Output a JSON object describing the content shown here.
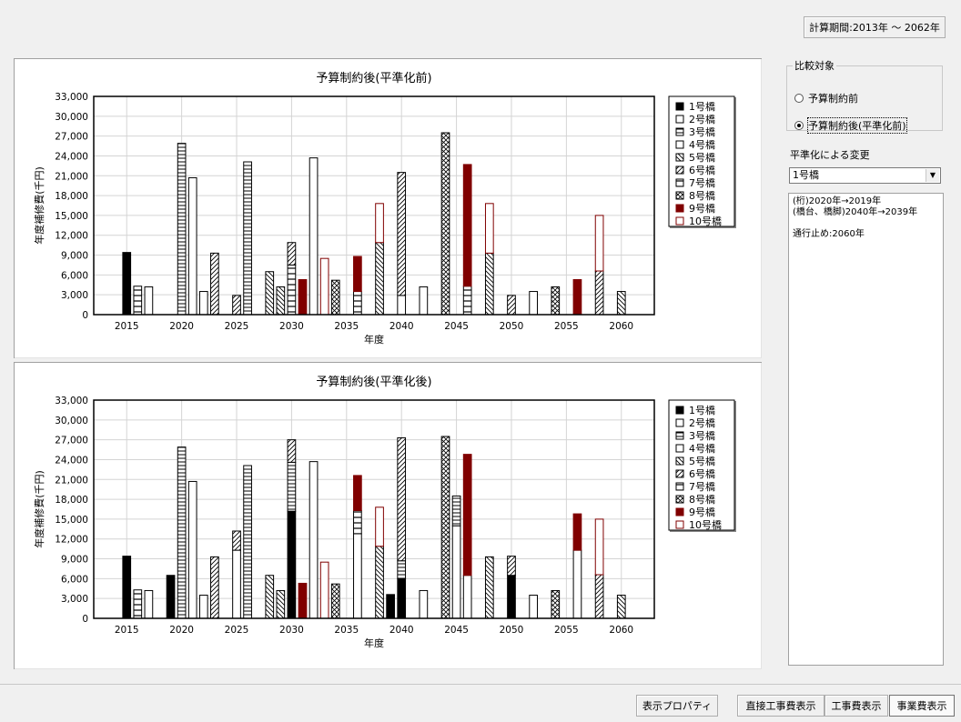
{
  "header": {
    "period_label": "計算期間:2013年 〜 2062年"
  },
  "compare": {
    "title": "比較対象",
    "options": [
      {
        "label": "予算制約前",
        "selected": false
      },
      {
        "label": "予算制約後(平準化前)",
        "selected": true
      }
    ]
  },
  "smoothing": {
    "label": "平準化による変更",
    "selected_bridge": "1号橋",
    "changes": [
      "(桁)2020年→2019年",
      "(橋台、橋脚)2040年→2039年",
      "",
      "通行止め:2060年"
    ]
  },
  "footer": {
    "properties_button": "表示プロパティ",
    "direct_cost_button": "直接工事費表示",
    "construction_cost_button": "工事費表示",
    "business_cost_button": "事業費表示"
  },
  "colors": {
    "bridge1": "#000000",
    "bridge9": "#800000",
    "bridge10": "#800000"
  },
  "chart_data": [
    {
      "type": "bar",
      "title": "予算制約後(平準化前)",
      "xlabel": "年度",
      "ylabel": "年度補修費(千円)",
      "ylim": [
        0,
        33000
      ],
      "yticks": [
        0,
        3000,
        6000,
        9000,
        12000,
        15000,
        18000,
        21000,
        24000,
        27000,
        30000,
        33000
      ],
      "xticks": [
        2015,
        2020,
        2025,
        2030,
        2035,
        2040,
        2045,
        2050,
        2055,
        2060
      ],
      "xlim": [
        2012,
        2063
      ],
      "grid": true,
      "legend_position": "right",
      "series_names": [
        "1号橋",
        "2号橋",
        "3号橋",
        "4号橋",
        "5号橋",
        "6号橋",
        "7号橋",
        "8号橋",
        "9号橋",
        "10号橋"
      ],
      "bars": [
        {
          "year": 2015,
          "segments": [
            {
              "s": 0,
              "v": 9400
            }
          ]
        },
        {
          "year": 2016,
          "segments": [
            {
              "s": 6,
              "v": 4300
            }
          ]
        },
        {
          "year": 2017,
          "segments": [
            {
              "s": 3,
              "v": 4200
            }
          ]
        },
        {
          "year": 2020,
          "segments": [
            {
              "s": 2,
              "v": 25900
            }
          ]
        },
        {
          "year": 2021,
          "segments": [
            {
              "s": 1,
              "v": 20700
            }
          ]
        },
        {
          "year": 2022,
          "segments": [
            {
              "s": 1,
              "v": 3500
            }
          ]
        },
        {
          "year": 2023,
          "segments": [
            {
              "s": 5,
              "v": 9300
            }
          ]
        },
        {
          "year": 2025,
          "segments": [
            {
              "s": 5,
              "v": 2900
            }
          ]
        },
        {
          "year": 2026,
          "segments": [
            {
              "s": 2,
              "v": 23100
            }
          ]
        },
        {
          "year": 2028,
          "segments": [
            {
              "s": 4,
              "v": 6500
            }
          ]
        },
        {
          "year": 2029,
          "segments": [
            {
              "s": 4,
              "v": 4200
            }
          ]
        },
        {
          "year": 2030,
          "segments": [
            {
              "s": 6,
              "v": 7500
            },
            {
              "s": 5,
              "v": 3400
            }
          ]
        },
        {
          "year": 2031,
          "segments": [
            {
              "s": 8,
              "v": 5300
            }
          ]
        },
        {
          "year": 2032,
          "segments": [
            {
              "s": 3,
              "v": 23700
            }
          ]
        },
        {
          "year": 2033,
          "segments": [
            {
              "s": 9,
              "v": 8500
            }
          ]
        },
        {
          "year": 2034,
          "segments": [
            {
              "s": 7,
              "v": 5200
            }
          ]
        },
        {
          "year": 2036,
          "segments": [
            {
              "s": 6,
              "v": 3500
            },
            {
              "s": 8,
              "v": 5300
            }
          ]
        },
        {
          "year": 2038,
          "segments": [
            {
              "s": 4,
              "v": 10900
            },
            {
              "s": 9,
              "v": 5900
            }
          ]
        },
        {
          "year": 2040,
          "segments": [
            {
              "s": 1,
              "v": 2900
            },
            {
              "s": 5,
              "v": 18600
            }
          ]
        },
        {
          "year": 2042,
          "segments": [
            {
              "s": 3,
              "v": 4200
            }
          ]
        },
        {
          "year": 2044,
          "segments": [
            {
              "s": 7,
              "v": 27500
            }
          ]
        },
        {
          "year": 2046,
          "segments": [
            {
              "s": 6,
              "v": 4300
            },
            {
              "s": 8,
              "v": 18400
            }
          ]
        },
        {
          "year": 2048,
          "segments": [
            {
              "s": 4,
              "v": 9300
            },
            {
              "s": 9,
              "v": 7500
            }
          ]
        },
        {
          "year": 2050,
          "segments": [
            {
              "s": 5,
              "v": 2900
            }
          ]
        },
        {
          "year": 2052,
          "segments": [
            {
              "s": 1,
              "v": 3500
            }
          ]
        },
        {
          "year": 2054,
          "segments": [
            {
              "s": 7,
              "v": 4200
            }
          ]
        },
        {
          "year": 2056,
          "segments": [
            {
              "s": 8,
              "v": 5300
            }
          ]
        },
        {
          "year": 2058,
          "segments": [
            {
              "s": 5,
              "v": 6600
            },
            {
              "s": 9,
              "v": 8400
            }
          ]
        },
        {
          "year": 2060,
          "segments": [
            {
              "s": 4,
              "v": 3500
            }
          ]
        }
      ]
    },
    {
      "type": "bar",
      "title": "予算制約後(平準化後)",
      "xlabel": "年度",
      "ylabel": "年度補修費(千円)",
      "ylim": [
        0,
        33000
      ],
      "yticks": [
        0,
        3000,
        6000,
        9000,
        12000,
        15000,
        18000,
        21000,
        24000,
        27000,
        30000,
        33000
      ],
      "xticks": [
        2015,
        2020,
        2025,
        2030,
        2035,
        2040,
        2045,
        2050,
        2055,
        2060
      ],
      "xlim": [
        2012,
        2063
      ],
      "grid": true,
      "legend_position": "right",
      "series_names": [
        "1号橋",
        "2号橋",
        "3号橋",
        "4号橋",
        "5号橋",
        "6号橋",
        "7号橋",
        "8号橋",
        "9号橋",
        "10号橋"
      ],
      "bars": [
        {
          "year": 2015,
          "segments": [
            {
              "s": 0,
              "v": 9400
            }
          ]
        },
        {
          "year": 2016,
          "segments": [
            {
              "s": 6,
              "v": 4300
            }
          ]
        },
        {
          "year": 2017,
          "segments": [
            {
              "s": 3,
              "v": 4200
            }
          ]
        },
        {
          "year": 2019,
          "segments": [
            {
              "s": 0,
              "v": 6500
            }
          ]
        },
        {
          "year": 2020,
          "segments": [
            {
              "s": 2,
              "v": 25900
            }
          ]
        },
        {
          "year": 2021,
          "segments": [
            {
              "s": 1,
              "v": 20700
            }
          ]
        },
        {
          "year": 2022,
          "segments": [
            {
              "s": 1,
              "v": 3500
            }
          ]
        },
        {
          "year": 2023,
          "segments": [
            {
              "s": 5,
              "v": 9300
            }
          ]
        },
        {
          "year": 2025,
          "segments": [
            {
              "s": 3,
              "v": 10300
            },
            {
              "s": 5,
              "v": 2900
            }
          ]
        },
        {
          "year": 2026,
          "segments": [
            {
              "s": 2,
              "v": 23100
            }
          ]
        },
        {
          "year": 2028,
          "segments": [
            {
              "s": 4,
              "v": 6500
            }
          ]
        },
        {
          "year": 2029,
          "segments": [
            {
              "s": 4,
              "v": 4200
            }
          ]
        },
        {
          "year": 2030,
          "segments": [
            {
              "s": 0,
              "v": 16200
            },
            {
              "s": 2,
              "v": 7400
            },
            {
              "s": 5,
              "v": 3400
            }
          ]
        },
        {
          "year": 2031,
          "segments": [
            {
              "s": 8,
              "v": 5300
            }
          ]
        },
        {
          "year": 2032,
          "segments": [
            {
              "s": 3,
              "v": 23700
            }
          ]
        },
        {
          "year": 2033,
          "segments": [
            {
              "s": 9,
              "v": 8500
            }
          ]
        },
        {
          "year": 2034,
          "segments": [
            {
              "s": 7,
              "v": 5200
            }
          ]
        },
        {
          "year": 2036,
          "segments": [
            {
              "s": 3,
              "v": 12800
            },
            {
              "s": 6,
              "v": 3500
            },
            {
              "s": 8,
              "v": 5300
            }
          ]
        },
        {
          "year": 2038,
          "segments": [
            {
              "s": 4,
              "v": 10900
            },
            {
              "s": 9,
              "v": 5900
            }
          ]
        },
        {
          "year": 2039,
          "segments": [
            {
              "s": 0,
              "v": 3600
            }
          ]
        },
        {
          "year": 2040,
          "segments": [
            {
              "s": 0,
              "v": 6000
            },
            {
              "s": 2,
              "v": 2700
            },
            {
              "s": 5,
              "v": 18600
            }
          ]
        },
        {
          "year": 2042,
          "segments": [
            {
              "s": 3,
              "v": 4200
            }
          ]
        },
        {
          "year": 2044,
          "segments": [
            {
              "s": 7,
              "v": 27500
            }
          ]
        },
        {
          "year": 2045,
          "segments": [
            {
              "s": 3,
              "v": 14000
            },
            {
              "s": 2,
              "v": 4500
            }
          ]
        },
        {
          "year": 2046,
          "segments": [
            {
              "s": 3,
              "v": 6500
            },
            {
              "s": 8,
              "v": 18300
            }
          ]
        },
        {
          "year": 2048,
          "segments": [
            {
              "s": 4,
              "v": 9300
            }
          ]
        },
        {
          "year": 2050,
          "segments": [
            {
              "s": 0,
              "v": 6500
            },
            {
              "s": 5,
              "v": 2900
            }
          ]
        },
        {
          "year": 2052,
          "segments": [
            {
              "s": 1,
              "v": 3500
            }
          ]
        },
        {
          "year": 2054,
          "segments": [
            {
              "s": 7,
              "v": 4200
            }
          ]
        },
        {
          "year": 2056,
          "segments": [
            {
              "s": 3,
              "v": 10300
            },
            {
              "s": 8,
              "v": 5500
            }
          ]
        },
        {
          "year": 2058,
          "segments": [
            {
              "s": 5,
              "v": 6600
            },
            {
              "s": 9,
              "v": 8400
            }
          ]
        },
        {
          "year": 2060,
          "segments": [
            {
              "s": 4,
              "v": 3500
            }
          ]
        }
      ]
    }
  ]
}
